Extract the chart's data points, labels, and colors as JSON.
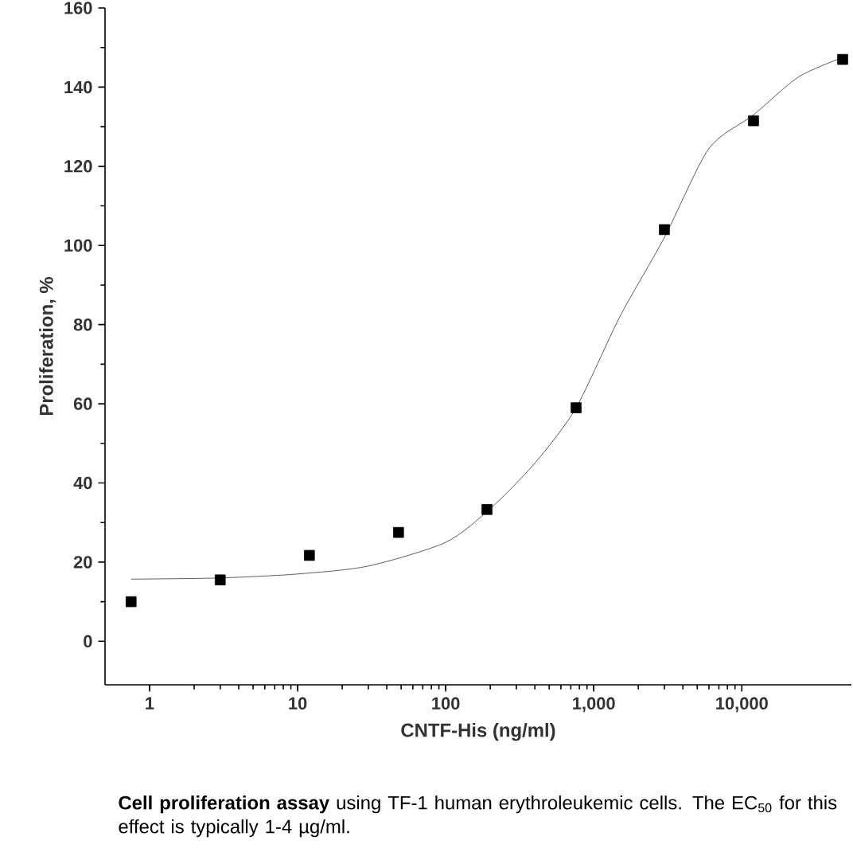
{
  "chart_data": {
    "type": "scatter",
    "xlabel": "CNTF-His (ng/ml)",
    "ylabel": "Proliferation, %",
    "log": "x",
    "marker": "square",
    "x": [
      0.75,
      3,
      12,
      48,
      190,
      760,
      3000,
      12000,
      48000
    ],
    "series": [
      {
        "color": "#000000",
        "values": [
          10,
          15.5,
          21.7,
          27.5,
          33.3,
          59,
          104,
          131.5,
          147
        ]
      },
      {
        "type": "line",
        "color": "#333333",
        "marker": "none",
        "x": [
          0.75,
          3,
          10,
          30,
          100,
          200,
          400,
          760,
          1500,
          3000,
          6000,
          12000,
          24000,
          48000
        ],
        "values": [
          15.7,
          16,
          17,
          19,
          25,
          33.5,
          45,
          59,
          82,
          102,
          124.5,
          133,
          142.5,
          147.5
        ]
      }
    ],
    "xlim": [
      0.5,
      55000
    ],
    "ylim": [
      -11,
      160
    ],
    "xticks": [
      1,
      10,
      100,
      {
        "value": 1000,
        "label": "1,000"
      },
      {
        "value": 10000,
        "label": "10,000"
      }
    ],
    "yticks": [
      0,
      20,
      40,
      60,
      80,
      100,
      120,
      140,
      160
    ],
    "annotations": [
      "**Cell proliferation assay** using TF-1 human erythroleukemic cells. The EC$_{50}$ for this effect is typically 1-4 µg/ml."
    ]
  }
}
